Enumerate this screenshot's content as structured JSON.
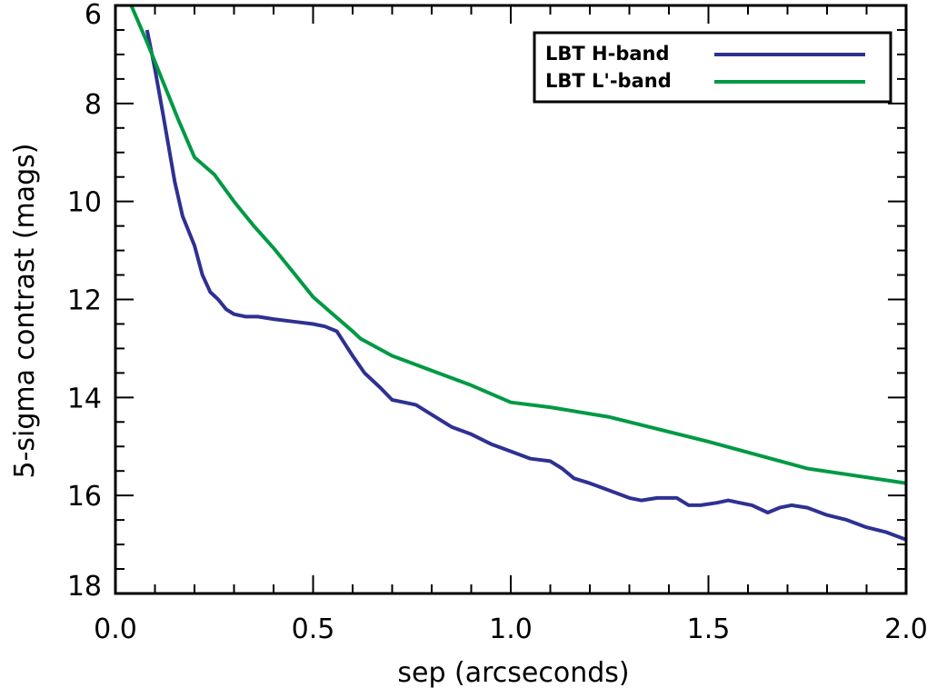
{
  "chart_data": {
    "type": "line",
    "title": "",
    "xlabel": "sep (arcseconds)",
    "ylabel": "5-sigma contrast (mags)",
    "xlim": [
      0.0,
      2.0
    ],
    "ylim": [
      18,
      6
    ],
    "y_inverted": true,
    "grid": false,
    "legend_position": "top-right",
    "x_ticks": [
      "0.0",
      "0.5",
      "1.0",
      "1.5",
      "2.0"
    ],
    "x_tick_values": [
      0.0,
      0.5,
      1.0,
      1.5,
      2.0
    ],
    "y_ticks": [
      "6",
      "8",
      "10",
      "12",
      "14",
      "16",
      "18"
    ],
    "y_tick_values": [
      6,
      8,
      10,
      12,
      14,
      16,
      18
    ],
    "series": [
      {
        "name": "LBT H-band",
        "color": "#2e3192",
        "x": [
          0.08,
          0.1,
          0.12,
          0.15,
          0.17,
          0.2,
          0.22,
          0.24,
          0.26,
          0.28,
          0.3,
          0.33,
          0.36,
          0.4,
          0.45,
          0.5,
          0.53,
          0.56,
          0.6,
          0.63,
          0.67,
          0.7,
          0.73,
          0.76,
          0.8,
          0.85,
          0.9,
          0.95,
          1.0,
          1.05,
          1.1,
          1.13,
          1.16,
          1.2,
          1.25,
          1.3,
          1.33,
          1.37,
          1.42,
          1.45,
          1.48,
          1.52,
          1.55,
          1.58,
          1.61,
          1.65,
          1.68,
          1.71,
          1.75,
          1.8,
          1.85,
          1.9,
          1.95,
          2.0
        ],
        "y": [
          6.5,
          7.3,
          8.2,
          9.6,
          10.3,
          10.9,
          11.5,
          11.85,
          12.0,
          12.2,
          12.3,
          12.35,
          12.35,
          12.4,
          12.45,
          12.5,
          12.55,
          12.65,
          13.15,
          13.5,
          13.8,
          14.05,
          14.1,
          14.15,
          14.35,
          14.6,
          14.75,
          14.95,
          15.1,
          15.25,
          15.3,
          15.45,
          15.65,
          15.75,
          15.9,
          16.05,
          16.1,
          16.05,
          16.05,
          16.2,
          16.2,
          16.15,
          16.1,
          16.15,
          16.2,
          16.35,
          16.25,
          16.2,
          16.25,
          16.4,
          16.5,
          16.65,
          16.75,
          16.9
        ]
      },
      {
        "name": "LBT L'-band",
        "color": "#009944",
        "x": [
          0.04,
          0.08,
          0.12,
          0.16,
          0.2,
          0.25,
          0.3,
          0.35,
          0.4,
          0.45,
          0.5,
          0.55,
          0.6,
          0.62,
          0.7,
          0.75,
          0.8,
          0.9,
          1.0,
          1.1,
          1.25,
          1.5,
          1.75,
          2.0
        ],
        "y": [
          6.0,
          6.75,
          7.55,
          8.35,
          9.1,
          9.45,
          10.0,
          10.5,
          10.95,
          11.45,
          11.95,
          12.3,
          12.65,
          12.8,
          13.15,
          13.3,
          13.45,
          13.75,
          14.1,
          14.2,
          14.4,
          14.9,
          15.45,
          15.75
        ]
      }
    ]
  }
}
